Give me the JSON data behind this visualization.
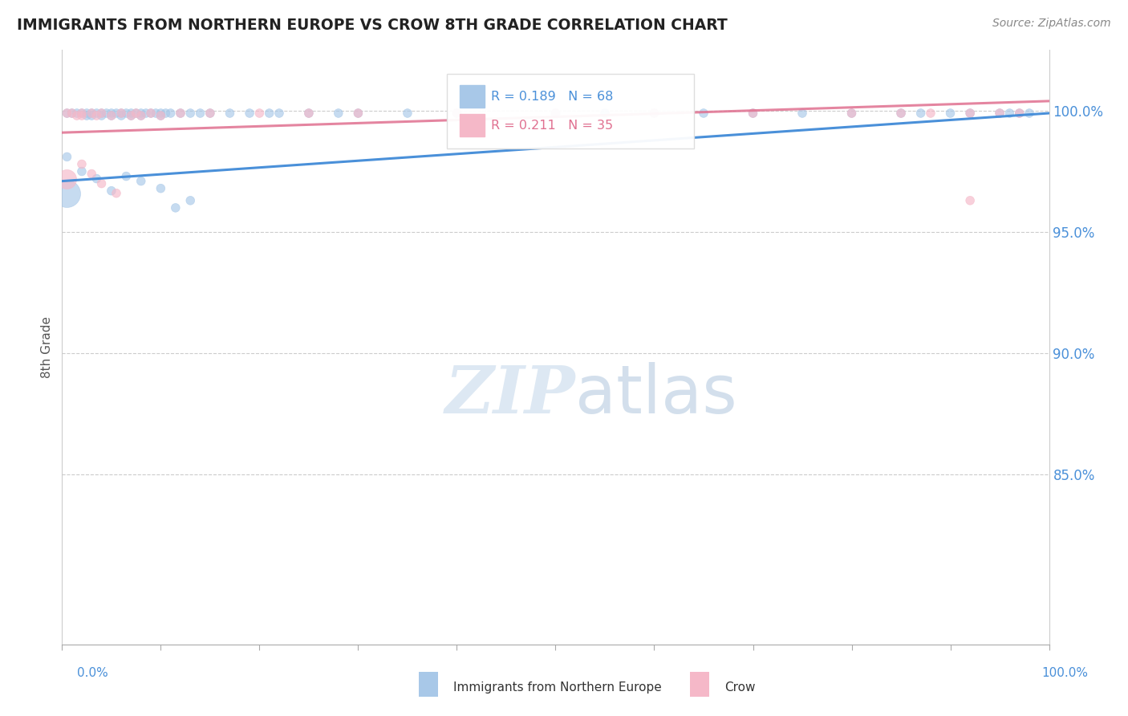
{
  "title": "IMMIGRANTS FROM NORTHERN EUROPE VS CROW 8TH GRADE CORRELATION CHART",
  "source": "Source: ZipAtlas.com",
  "ylabel": "8th Grade",
  "legend_label_blue": "Immigrants from Northern Europe",
  "legend_label_pink": "Crow",
  "legend_R_blue": "R = 0.189",
  "legend_N_blue": "N = 68",
  "legend_R_pink": "R = 0.211",
  "legend_N_pink": "N = 35",
  "blue_color": "#a8c8e8",
  "pink_color": "#f5b8c8",
  "blue_line_color": "#4a90d9",
  "pink_line_color": "#e07090",
  "watermark_color": "#dde8f3",
  "xlim": [
    0.0,
    1.0
  ],
  "ylim": [
    0.78,
    1.025
  ],
  "yticks": [
    0.85,
    0.9,
    0.95,
    1.0
  ],
  "ytick_labels": [
    "85.0%",
    "90.0%",
    "95.0%",
    "100.0%"
  ],
  "blue_scatter_x": [
    0.005,
    0.01,
    0.015,
    0.02,
    0.025,
    0.025,
    0.03,
    0.03,
    0.035,
    0.04,
    0.04,
    0.045,
    0.05,
    0.05,
    0.055,
    0.06,
    0.06,
    0.065,
    0.07,
    0.07,
    0.075,
    0.08,
    0.08,
    0.085,
    0.09,
    0.095,
    0.1,
    0.1,
    0.105,
    0.11,
    0.12,
    0.13,
    0.14,
    0.15,
    0.17,
    0.19,
    0.21,
    0.22,
    0.25,
    0.28,
    0.3,
    0.35,
    0.4,
    0.5,
    0.55,
    0.6,
    0.65,
    0.7,
    0.75,
    0.8,
    0.85,
    0.87,
    0.9,
    0.92,
    0.95,
    0.96,
    0.97,
    0.98,
    0.005,
    0.02,
    0.035,
    0.05,
    0.065,
    0.08,
    0.1,
    0.115,
    0.13
  ],
  "blue_scatter_y": [
    0.999,
    0.999,
    0.999,
    0.999,
    0.999,
    0.998,
    0.999,
    0.998,
    0.999,
    0.999,
    0.998,
    0.999,
    0.999,
    0.998,
    0.999,
    0.999,
    0.998,
    0.999,
    0.999,
    0.998,
    0.999,
    0.999,
    0.998,
    0.999,
    0.999,
    0.999,
    0.999,
    0.998,
    0.999,
    0.999,
    0.999,
    0.999,
    0.999,
    0.999,
    0.999,
    0.999,
    0.999,
    0.999,
    0.999,
    0.999,
    0.999,
    0.999,
    0.999,
    0.999,
    0.999,
    0.999,
    0.999,
    0.999,
    0.999,
    0.999,
    0.999,
    0.999,
    0.999,
    0.999,
    0.999,
    0.999,
    0.999,
    0.999,
    0.981,
    0.975,
    0.972,
    0.967,
    0.973,
    0.971,
    0.968,
    0.96,
    0.963
  ],
  "blue_scatter_sizes": [
    60,
    60,
    60,
    60,
    60,
    60,
    60,
    60,
    60,
    60,
    60,
    60,
    60,
    60,
    60,
    60,
    60,
    60,
    60,
    60,
    60,
    60,
    60,
    60,
    60,
    60,
    60,
    60,
    60,
    60,
    60,
    60,
    60,
    60,
    60,
    60,
    60,
    60,
    60,
    60,
    60,
    60,
    60,
    60,
    60,
    60,
    60,
    60,
    60,
    60,
    60,
    60,
    60,
    60,
    60,
    60,
    60,
    60,
    60,
    60,
    60,
    60,
    60,
    60,
    60,
    60,
    60
  ],
  "pink_scatter_x": [
    0.005,
    0.01,
    0.015,
    0.02,
    0.02,
    0.03,
    0.035,
    0.04,
    0.05,
    0.06,
    0.07,
    0.075,
    0.08,
    0.09,
    0.1,
    0.12,
    0.15,
    0.2,
    0.25,
    0.3,
    0.4,
    0.5,
    0.6,
    0.7,
    0.8,
    0.85,
    0.88,
    0.92,
    0.95,
    0.97,
    0.02,
    0.03,
    0.04,
    0.055,
    0.92
  ],
  "pink_scatter_y": [
    0.999,
    0.999,
    0.998,
    0.999,
    0.998,
    0.999,
    0.998,
    0.999,
    0.998,
    0.999,
    0.998,
    0.999,
    0.998,
    0.999,
    0.998,
    0.999,
    0.999,
    0.999,
    0.999,
    0.999,
    0.999,
    0.999,
    0.999,
    0.999,
    0.999,
    0.999,
    0.999,
    0.999,
    0.999,
    0.999,
    0.978,
    0.974,
    0.97,
    0.966,
    0.963
  ],
  "pink_scatter_sizes": [
    60,
    60,
    60,
    60,
    60,
    60,
    60,
    60,
    60,
    60,
    60,
    60,
    60,
    60,
    60,
    60,
    60,
    60,
    60,
    60,
    60,
    60,
    60,
    60,
    60,
    60,
    60,
    60,
    60,
    60,
    60,
    60,
    60,
    60,
    60
  ],
  "large_blue_x": [
    0.005
  ],
  "large_blue_y": [
    0.966
  ],
  "large_blue_size": [
    600
  ],
  "large_pink_x": [
    0.005
  ],
  "large_pink_y": [
    0.972
  ],
  "large_pink_size": [
    300
  ],
  "blue_trendline_x": [
    0.0,
    1.0
  ],
  "blue_trendline_y": [
    0.971,
    0.999
  ],
  "pink_trendline_x": [
    0.0,
    1.0
  ],
  "pink_trendline_y": [
    0.991,
    1.004
  ]
}
